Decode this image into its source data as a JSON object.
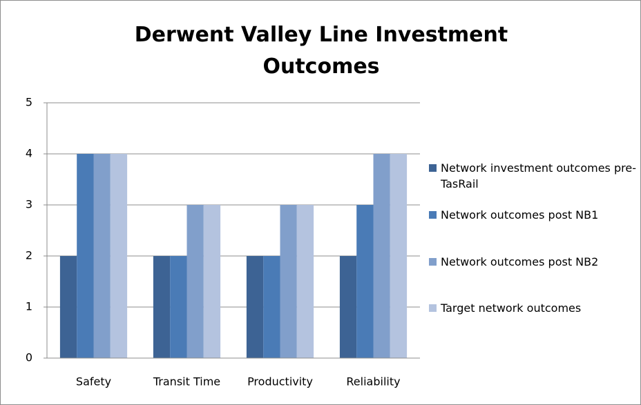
{
  "chart_data": {
    "type": "bar",
    "title": "Derwent Valley Line Investment Outcomes",
    "categories": [
      "Safety",
      "Transit Time",
      "Productivity",
      "Reliability"
    ],
    "series": [
      {
        "name": "Network investment outcomes pre-TasRail",
        "color": "#3d6394",
        "values": [
          2,
          2,
          2,
          2
        ]
      },
      {
        "name": "Network outcomes post NB1",
        "color": "#4a7bb6",
        "values": [
          4,
          2,
          2,
          3
        ]
      },
      {
        "name": "Network outcomes post NB2",
        "color": "#819fcb",
        "values": [
          4,
          3,
          3,
          4
        ]
      },
      {
        "name": "Target network outcomes",
        "color": "#b4c3df",
        "values": [
          4,
          3,
          3,
          4
        ]
      }
    ],
    "ylim": [
      0,
      5
    ],
    "yticks": [
      0,
      1,
      2,
      3,
      4,
      5
    ],
    "grid": true,
    "legend": "right"
  }
}
